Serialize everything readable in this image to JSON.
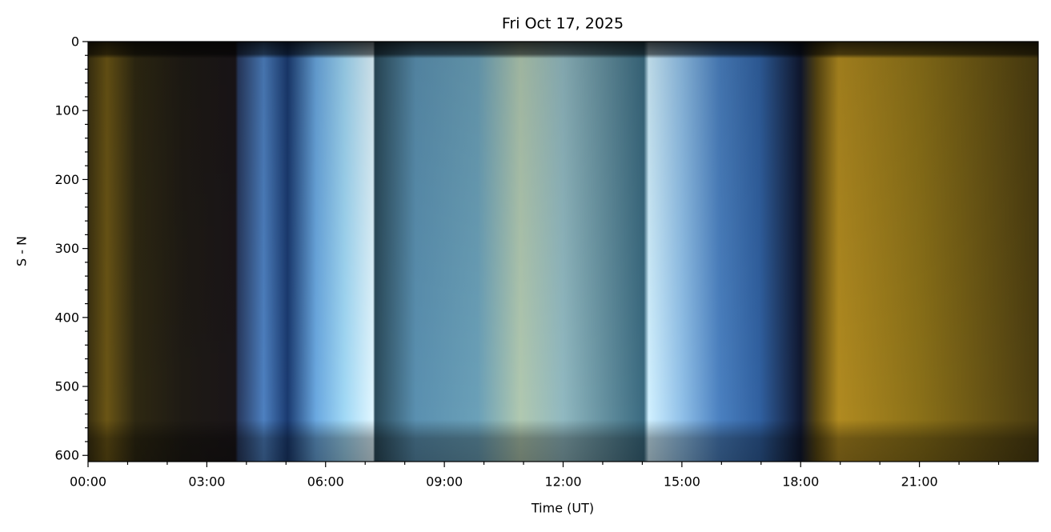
{
  "chart_data": {
    "type": "image",
    "title": "Fri Oct 17, 2025",
    "xlabel": "Time (UT)",
    "ylabel": "S - N",
    "xlim": [
      0,
      24
    ],
    "xticks": [
      {
        "value": 0,
        "label": "00:00"
      },
      {
        "value": 3,
        "label": "03:00"
      },
      {
        "value": 6,
        "label": "06:00"
      },
      {
        "value": 9,
        "label": "09:00"
      },
      {
        "value": 12,
        "label": "12:00"
      },
      {
        "value": 15,
        "label": "15:00"
      },
      {
        "value": 18,
        "label": "18:00"
      },
      {
        "value": 21,
        "label": "21:00"
      }
    ],
    "xminorticks": [
      1,
      2,
      4,
      5,
      7,
      8,
      10,
      11,
      13,
      14,
      16,
      17,
      19,
      20,
      22,
      23
    ],
    "ylim": [
      609,
      0
    ],
    "yticks": [
      0,
      100,
      200,
      300,
      400,
      500,
      600
    ],
    "yminorticks": [
      20,
      40,
      60,
      80,
      120,
      140,
      160,
      180,
      220,
      240,
      260,
      280,
      320,
      340,
      360,
      380,
      420,
      440,
      460,
      480,
      520,
      540,
      560,
      580
    ]
  }
}
